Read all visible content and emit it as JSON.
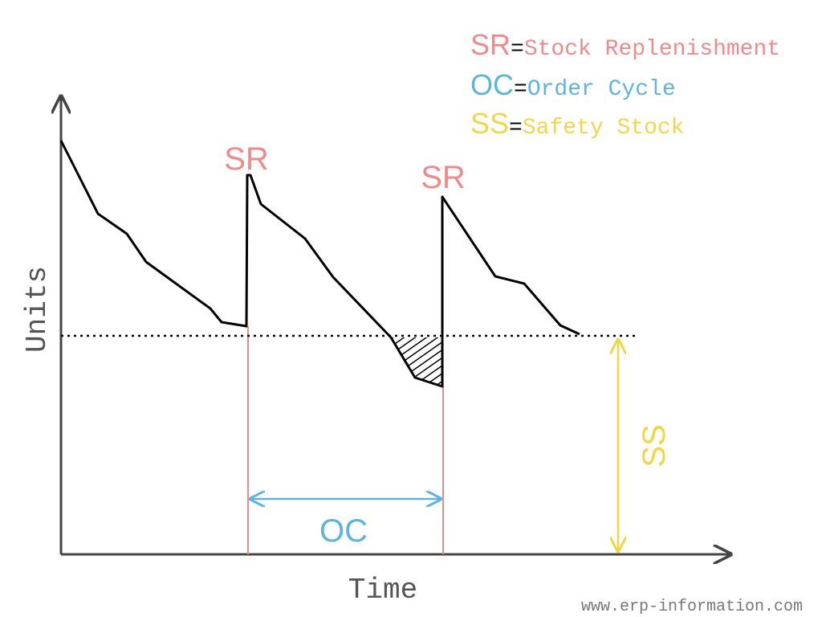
{
  "legend": [
    {
      "abbr": "SR",
      "equals": "=",
      "text": "Stock Replenishment"
    },
    {
      "abbr": "OC",
      "equals": "=",
      "text": "Order Cycle"
    },
    {
      "abbr": "SS",
      "equals": "=",
      "text": "Safety Stock"
    }
  ],
  "labels": {
    "replenishment_1": "SR",
    "replenishment_2": "SR",
    "order_cycle": "OC",
    "safety_stock": "SS"
  },
  "axes": {
    "x": "Time",
    "y": "Units"
  },
  "footer": "www.erp-information.com"
}
